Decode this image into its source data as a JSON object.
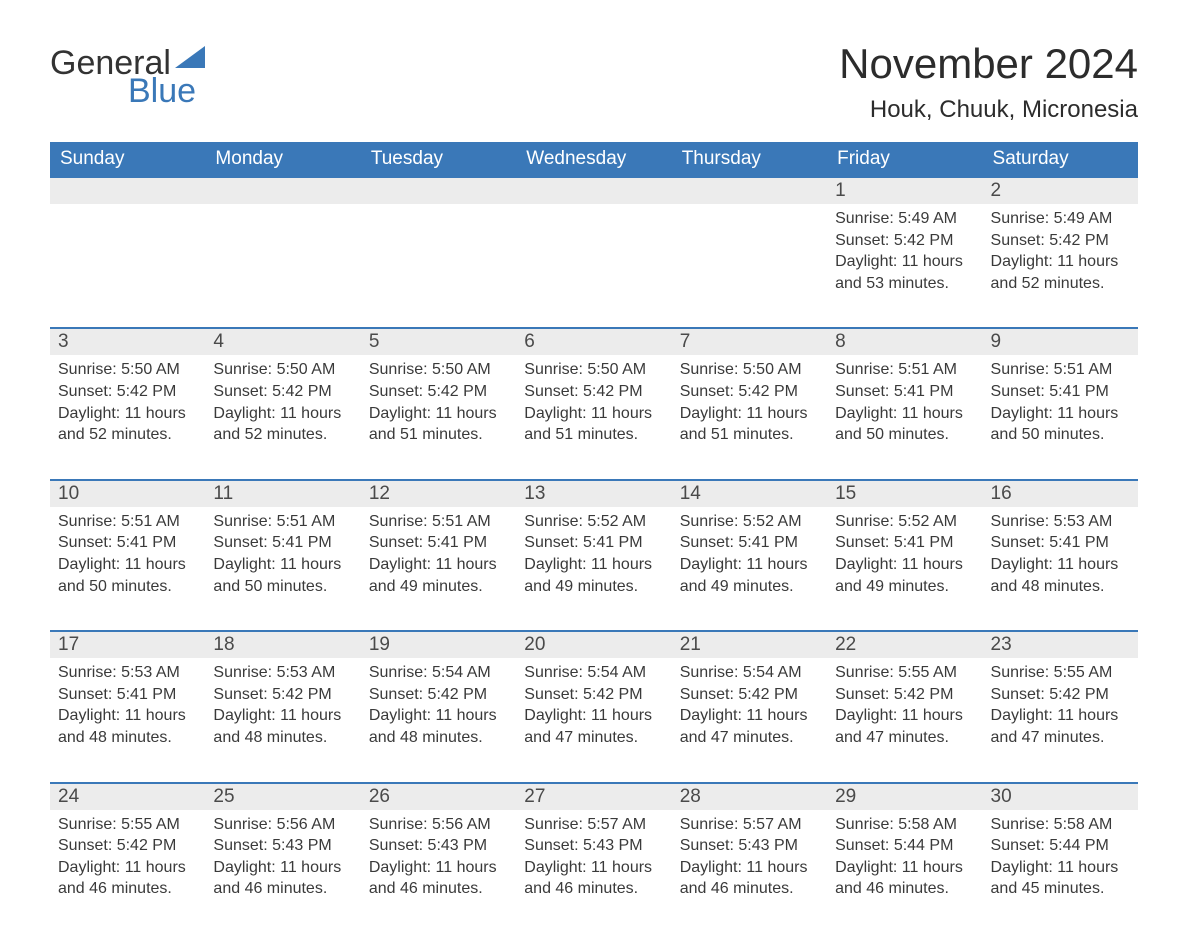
{
  "logo": {
    "word1": "General",
    "word2": "Blue",
    "triangle_color": "#3a78b8"
  },
  "title": "November 2024",
  "location": "Houk, Chuuk, Micronesia",
  "colors": {
    "header_bg": "#3a78b8",
    "header_text": "#ffffff",
    "daynum_bg": "#ececec",
    "row_divider": "#3a78b8",
    "body_text": "#3a3a3a",
    "page_bg": "#ffffff"
  },
  "fonts": {
    "title_size_pt": 32,
    "location_size_pt": 18,
    "header_size_pt": 14,
    "body_size_pt": 12
  },
  "day_labels": [
    "Sunday",
    "Monday",
    "Tuesday",
    "Wednesday",
    "Thursday",
    "Friday",
    "Saturday"
  ],
  "weeks": [
    [
      null,
      null,
      null,
      null,
      null,
      {
        "n": "1",
        "sunrise": "Sunrise: 5:49 AM",
        "sunset": "Sunset: 5:42 PM",
        "daylight": "Daylight: 11 hours and 53 minutes."
      },
      {
        "n": "2",
        "sunrise": "Sunrise: 5:49 AM",
        "sunset": "Sunset: 5:42 PM",
        "daylight": "Daylight: 11 hours and 52 minutes."
      }
    ],
    [
      {
        "n": "3",
        "sunrise": "Sunrise: 5:50 AM",
        "sunset": "Sunset: 5:42 PM",
        "daylight": "Daylight: 11 hours and 52 minutes."
      },
      {
        "n": "4",
        "sunrise": "Sunrise: 5:50 AM",
        "sunset": "Sunset: 5:42 PM",
        "daylight": "Daylight: 11 hours and 52 minutes."
      },
      {
        "n": "5",
        "sunrise": "Sunrise: 5:50 AM",
        "sunset": "Sunset: 5:42 PM",
        "daylight": "Daylight: 11 hours and 51 minutes."
      },
      {
        "n": "6",
        "sunrise": "Sunrise: 5:50 AM",
        "sunset": "Sunset: 5:42 PM",
        "daylight": "Daylight: 11 hours and 51 minutes."
      },
      {
        "n": "7",
        "sunrise": "Sunrise: 5:50 AM",
        "sunset": "Sunset: 5:42 PM",
        "daylight": "Daylight: 11 hours and 51 minutes."
      },
      {
        "n": "8",
        "sunrise": "Sunrise: 5:51 AM",
        "sunset": "Sunset: 5:41 PM",
        "daylight": "Daylight: 11 hours and 50 minutes."
      },
      {
        "n": "9",
        "sunrise": "Sunrise: 5:51 AM",
        "sunset": "Sunset: 5:41 PM",
        "daylight": "Daylight: 11 hours and 50 minutes."
      }
    ],
    [
      {
        "n": "10",
        "sunrise": "Sunrise: 5:51 AM",
        "sunset": "Sunset: 5:41 PM",
        "daylight": "Daylight: 11 hours and 50 minutes."
      },
      {
        "n": "11",
        "sunrise": "Sunrise: 5:51 AM",
        "sunset": "Sunset: 5:41 PM",
        "daylight": "Daylight: 11 hours and 50 minutes."
      },
      {
        "n": "12",
        "sunrise": "Sunrise: 5:51 AM",
        "sunset": "Sunset: 5:41 PM",
        "daylight": "Daylight: 11 hours and 49 minutes."
      },
      {
        "n": "13",
        "sunrise": "Sunrise: 5:52 AM",
        "sunset": "Sunset: 5:41 PM",
        "daylight": "Daylight: 11 hours and 49 minutes."
      },
      {
        "n": "14",
        "sunrise": "Sunrise: 5:52 AM",
        "sunset": "Sunset: 5:41 PM",
        "daylight": "Daylight: 11 hours and 49 minutes."
      },
      {
        "n": "15",
        "sunrise": "Sunrise: 5:52 AM",
        "sunset": "Sunset: 5:41 PM",
        "daylight": "Daylight: 11 hours and 49 minutes."
      },
      {
        "n": "16",
        "sunrise": "Sunrise: 5:53 AM",
        "sunset": "Sunset: 5:41 PM",
        "daylight": "Daylight: 11 hours and 48 minutes."
      }
    ],
    [
      {
        "n": "17",
        "sunrise": "Sunrise: 5:53 AM",
        "sunset": "Sunset: 5:41 PM",
        "daylight": "Daylight: 11 hours and 48 minutes."
      },
      {
        "n": "18",
        "sunrise": "Sunrise: 5:53 AM",
        "sunset": "Sunset: 5:42 PM",
        "daylight": "Daylight: 11 hours and 48 minutes."
      },
      {
        "n": "19",
        "sunrise": "Sunrise: 5:54 AM",
        "sunset": "Sunset: 5:42 PM",
        "daylight": "Daylight: 11 hours and 48 minutes."
      },
      {
        "n": "20",
        "sunrise": "Sunrise: 5:54 AM",
        "sunset": "Sunset: 5:42 PM",
        "daylight": "Daylight: 11 hours and 47 minutes."
      },
      {
        "n": "21",
        "sunrise": "Sunrise: 5:54 AM",
        "sunset": "Sunset: 5:42 PM",
        "daylight": "Daylight: 11 hours and 47 minutes."
      },
      {
        "n": "22",
        "sunrise": "Sunrise: 5:55 AM",
        "sunset": "Sunset: 5:42 PM",
        "daylight": "Daylight: 11 hours and 47 minutes."
      },
      {
        "n": "23",
        "sunrise": "Sunrise: 5:55 AM",
        "sunset": "Sunset: 5:42 PM",
        "daylight": "Daylight: 11 hours and 47 minutes."
      }
    ],
    [
      {
        "n": "24",
        "sunrise": "Sunrise: 5:55 AM",
        "sunset": "Sunset: 5:42 PM",
        "daylight": "Daylight: 11 hours and 46 minutes."
      },
      {
        "n": "25",
        "sunrise": "Sunrise: 5:56 AM",
        "sunset": "Sunset: 5:43 PM",
        "daylight": "Daylight: 11 hours and 46 minutes."
      },
      {
        "n": "26",
        "sunrise": "Sunrise: 5:56 AM",
        "sunset": "Sunset: 5:43 PM",
        "daylight": "Daylight: 11 hours and 46 minutes."
      },
      {
        "n": "27",
        "sunrise": "Sunrise: 5:57 AM",
        "sunset": "Sunset: 5:43 PM",
        "daylight": "Daylight: 11 hours and 46 minutes."
      },
      {
        "n": "28",
        "sunrise": "Sunrise: 5:57 AM",
        "sunset": "Sunset: 5:43 PM",
        "daylight": "Daylight: 11 hours and 46 minutes."
      },
      {
        "n": "29",
        "sunrise": "Sunrise: 5:58 AM",
        "sunset": "Sunset: 5:44 PM",
        "daylight": "Daylight: 11 hours and 46 minutes."
      },
      {
        "n": "30",
        "sunrise": "Sunrise: 5:58 AM",
        "sunset": "Sunset: 5:44 PM",
        "daylight": "Daylight: 11 hours and 45 minutes."
      }
    ]
  ]
}
